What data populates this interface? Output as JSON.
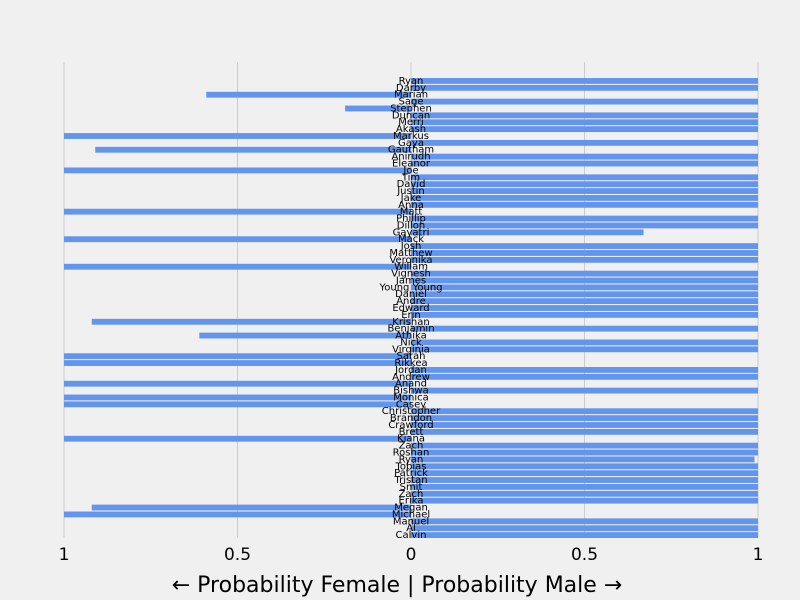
{
  "chart_data": {
    "type": "bar",
    "orientation": "horizontal-diverging",
    "bar_color": "#6495ed",
    "background_color": "#f0f0f0",
    "grid_color": "#cbcbcb",
    "xlabel": "← Probability Female | Probability Male →",
    "xlim": [
      -1,
      1
    ],
    "xticks": [
      -1,
      -0.5,
      0,
      0.5,
      1
    ],
    "xtick_labels": [
      "1",
      "0.5",
      "0",
      "0.5",
      "1"
    ],
    "grid": true,
    "categories": [
      "Calvin",
      "Al",
      "Manuel",
      "Michael",
      "Megan",
      "Erika",
      "Zach",
      "Smit",
      "Tristan",
      "Patrick",
      "Tobias",
      "Ryan",
      "Roshan",
      "Zach",
      "Kiana",
      "Brett",
      "Crawford",
      "Brandon",
      "Christopher",
      "Casey",
      "Monica",
      "Bishwa",
      "Anand",
      "Andrew",
      "Jordan",
      "Rikkea",
      "Sarah",
      "Virginia",
      "Nick",
      "Athika",
      "Benjamin",
      "Krishan",
      "Erin",
      "Edward",
      "Andre",
      "Daniel",
      "Young Young",
      "James",
      "Vignesh",
      "Willam",
      "Veronika",
      "Matthew",
      "Josh",
      "Mack",
      "Gayatri",
      "Dillon",
      "Phillip",
      "Matt",
      "Anna",
      "Jake",
      "Justin",
      "David",
      "Tim",
      "Joe",
      "Eleanor",
      "Anirudh",
      "Gautham",
      "Gaya",
      "Markus",
      "Akash",
      "Merri",
      "Duncan",
      "Stephen",
      "Sage",
      "Marian",
      "Darby",
      "Ryan"
    ],
    "values": [
      1,
      1,
      1,
      -1,
      -0.92,
      1,
      1,
      1,
      1,
      1,
      1,
      0.99,
      1,
      1,
      -1,
      1,
      1,
      1,
      1,
      -1,
      -1,
      1,
      -1,
      1,
      1,
      -1,
      -1,
      1,
      1,
      -0.61,
      1,
      -0.92,
      1,
      1,
      1,
      1,
      1,
      1,
      1,
      -1,
      1,
      1,
      1,
      -1,
      0.67,
      1,
      1,
      -1,
      1,
      1,
      1,
      1,
      1,
      -1,
      1,
      1,
      -0.91,
      1,
      -1,
      1,
      1,
      1,
      -0.19,
      1,
      -0.59,
      1,
      1
    ]
  }
}
